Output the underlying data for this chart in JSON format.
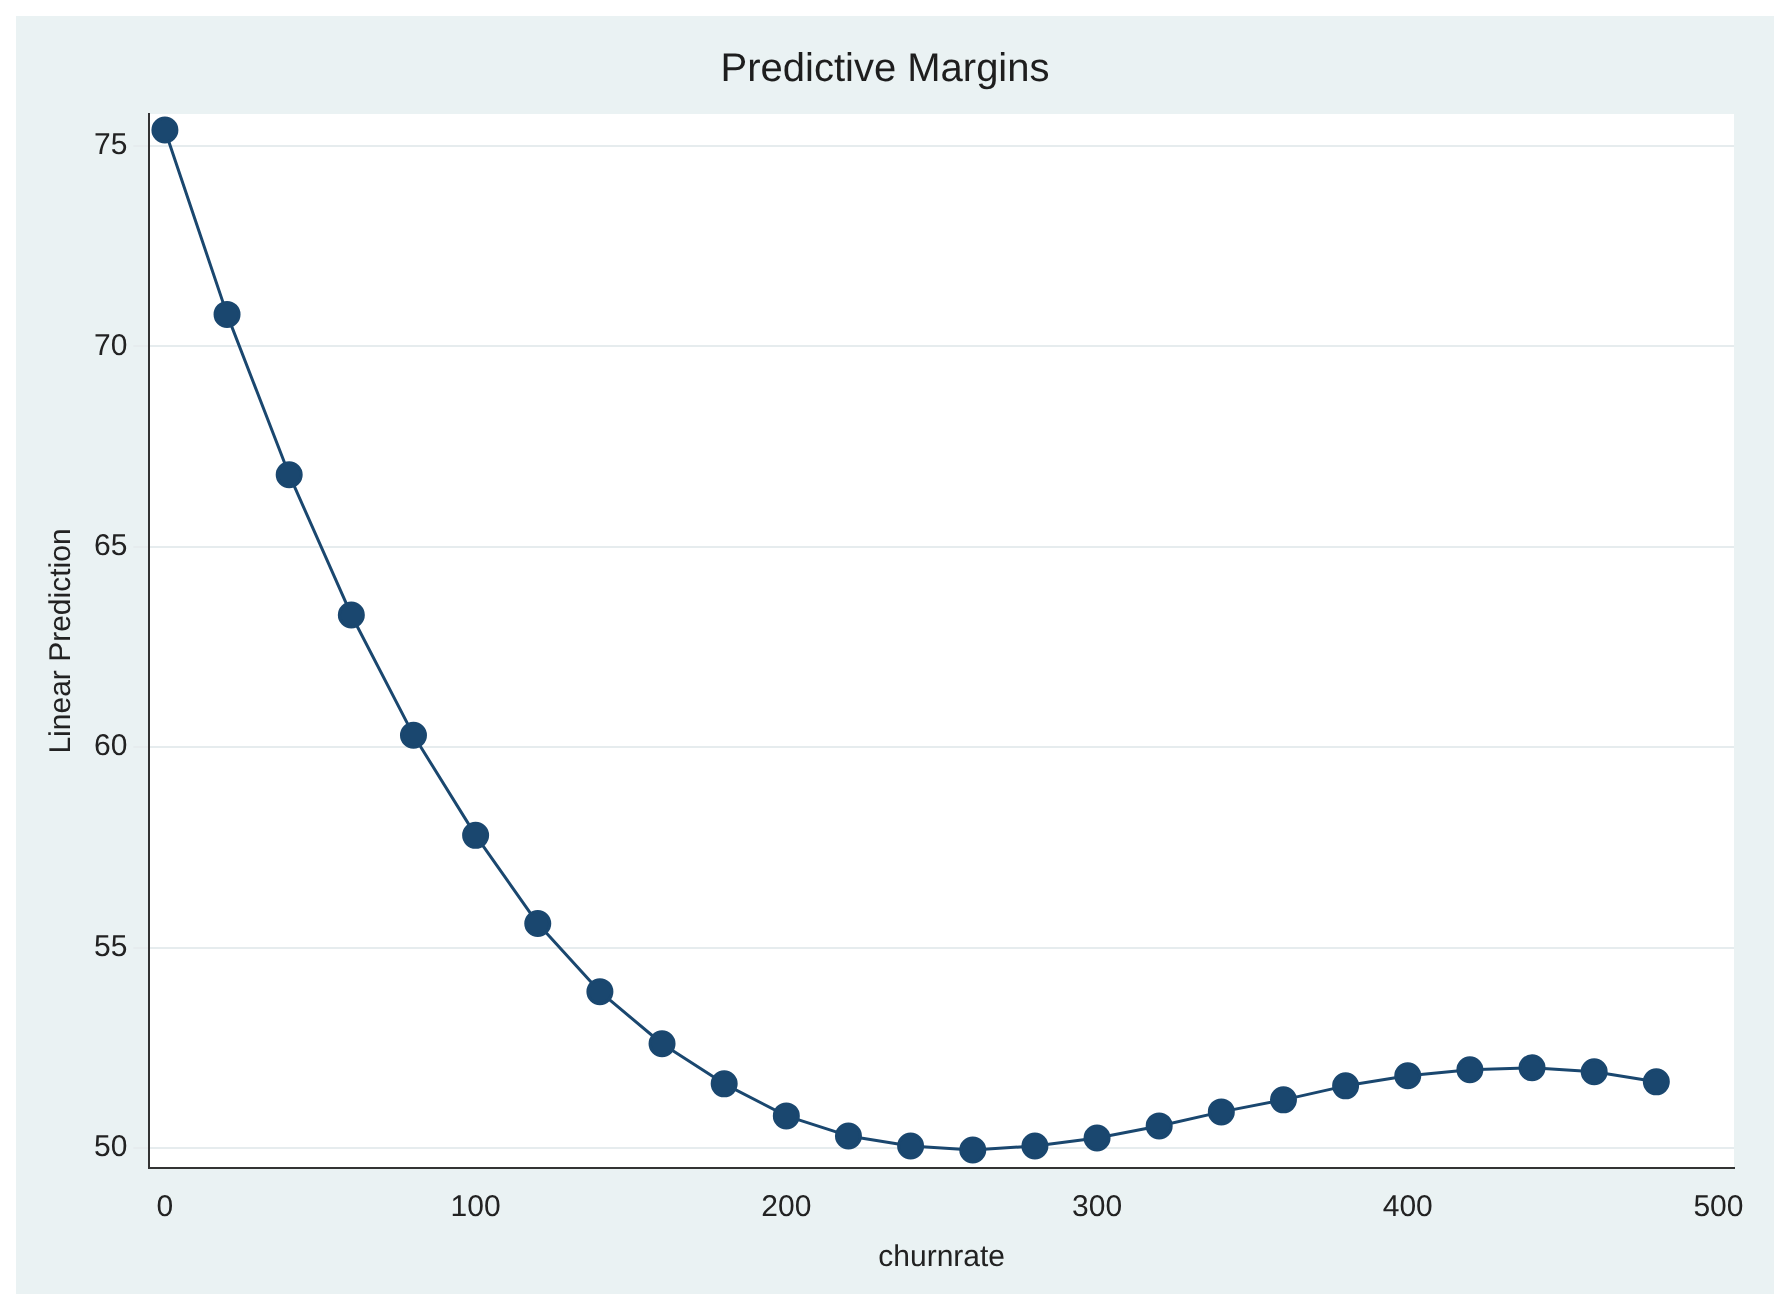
{
  "chart_data": {
    "type": "line",
    "title": "Predictive Margins",
    "xlabel": "churnrate",
    "ylabel": "Linear Prediction",
    "x": [
      0,
      20,
      40,
      60,
      80,
      100,
      120,
      140,
      160,
      180,
      200,
      220,
      240,
      260,
      280,
      300,
      320,
      340,
      360,
      380,
      400,
      420,
      440,
      460,
      480
    ],
    "series": [
      {
        "color": "#1a476f",
        "values": [
          75.4,
          70.8,
          66.8,
          63.3,
          60.3,
          57.8,
          55.6,
          53.9,
          52.6,
          51.6,
          50.8,
          50.3,
          50.05,
          49.95,
          50.05,
          50.25,
          50.55,
          50.9,
          51.2,
          51.55,
          51.8,
          51.95,
          52.0,
          51.9,
          51.65
        ]
      }
    ],
    "xlim": [
      -5,
      505
    ],
    "xticks": [
      0,
      100,
      200,
      300,
      400,
      500
    ],
    "ylim": [
      49.5,
      75.8
    ],
    "yticks": [
      50,
      55,
      60,
      65,
      70,
      75
    ],
    "grid": "y",
    "legend": false,
    "marker": "circle",
    "line_style": "solid"
  }
}
